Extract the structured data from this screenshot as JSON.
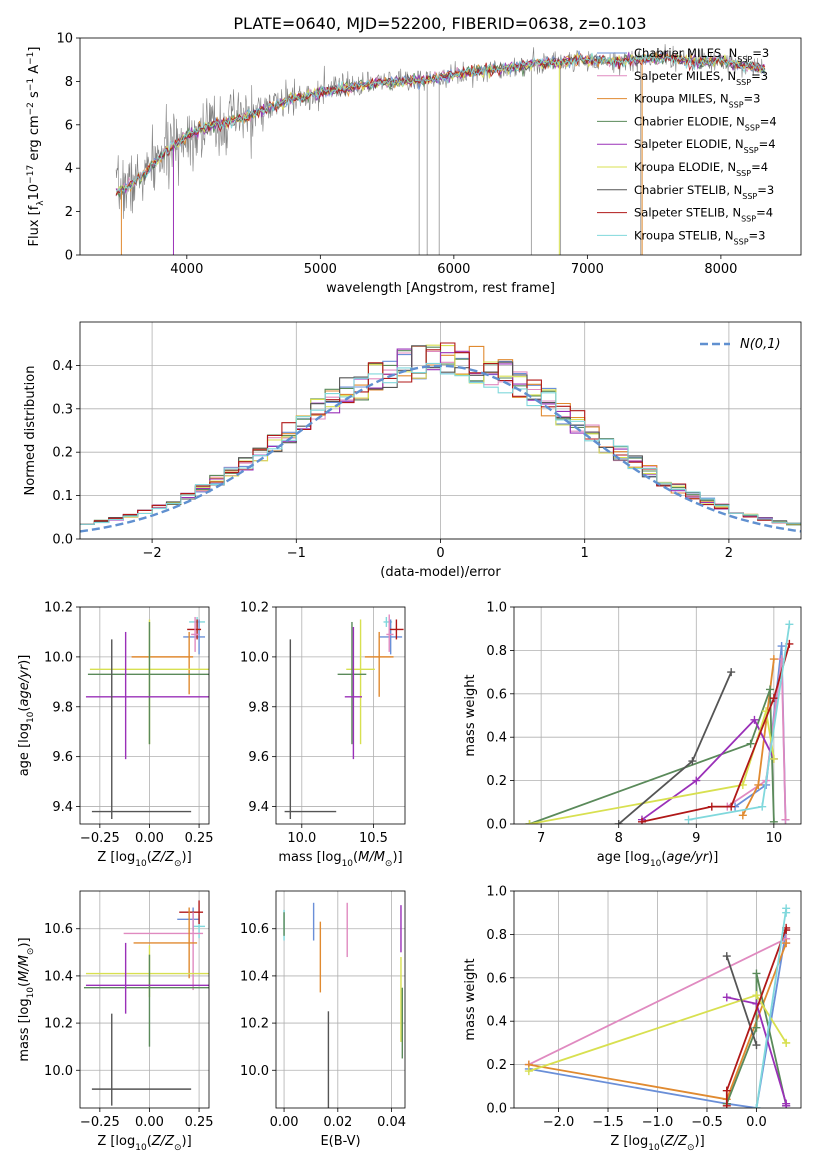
{
  "figure_title": "PLATE=0640, MJD=52200, FIBERID=0638, z=0.103",
  "colors": {
    "Chabrier MILES": "#6a8fd8",
    "Salpeter MILES": "#e08ac0",
    "Kroupa MILES": "#e08a30",
    "Chabrier ELODIE": "#5a8a5a",
    "Salpeter ELODIE": "#9a30b8",
    "Kroupa ELODIE": "#d8e050",
    "Chabrier STELIB": "#555555",
    "Salpeter STELIB": "#b01818",
    "Kroupa STELIB": "#80d8dc",
    "data": "#808080",
    "gauss": "#6090d0"
  },
  "chart_data": [
    {
      "type": "line",
      "panel": "spectrum",
      "xlabel": "wavelength [Angstrom, rest frame]",
      "ylabel": "Flux [f_λ10^-17 erg cm^-2 s^-1 A^-1]",
      "xlim": [
        3200,
        8600
      ],
      "ylim": [
        0,
        10
      ],
      "xticks": [
        4000,
        5000,
        6000,
        7000,
        8000
      ],
      "yticks": [
        0,
        2,
        4,
        6,
        8,
        10
      ],
      "legend": [
        "Chabrier MILES, N_SSP=3",
        "Salpeter MILES, N_SSP=3",
        "Kroupa MILES, N_SSP=3",
        "Chabrier ELODIE, N_SSP=4",
        "Salpeter ELODIE, N_SSP=4",
        "Kroupa ELODIE, N_SSP=4",
        "Chabrier STELIB, N_SSP=3",
        "Salpeter STELIB, N_SSP=4",
        "Kroupa STELIB, N_SSP=3"
      ],
      "legend_position": "right",
      "continuum": {
        "x": [
          3470,
          3600,
          3700,
          3800,
          3900,
          4000,
          4100,
          4200,
          4300,
          4400,
          4500,
          4600,
          4800,
          5000,
          5200,
          5400,
          5600,
          5800,
          6000,
          6200,
          6400,
          6600,
          6800,
          7000,
          7200,
          7400,
          7600,
          7800,
          8000,
          8200,
          8300
        ],
        "y": [
          2.9,
          3.3,
          3.8,
          4.5,
          5.0,
          5.5,
          5.8,
          6.0,
          6.1,
          6.3,
          6.5,
          6.8,
          7.2,
          7.5,
          7.7,
          7.9,
          8.0,
          8.1,
          8.3,
          8.5,
          8.6,
          8.8,
          8.9,
          9.0,
          8.9,
          9.0,
          9.1,
          8.9,
          8.9,
          8.7,
          8.6
        ]
      },
      "model_drops": [
        {
          "model": "Kroupa MILES",
          "x": 3510
        },
        {
          "model": "Salpeter ELODIE",
          "x": 3900
        },
        {
          "model": "Kroupa ELODIE",
          "x": 6790
        },
        {
          "model": "Kroupa MILES",
          "x": 7410
        }
      ],
      "data_spikes": [
        5740,
        5800,
        5890,
        6580,
        6800,
        7400
      ]
    },
    {
      "type": "line",
      "panel": "residual-histogram",
      "xlabel": "(data-model)/error",
      "ylabel": "Normed distribution",
      "xlim": [
        -2.5,
        2.5
      ],
      "ylim": [
        0,
        0.5
      ],
      "xticks": [
        -2,
        -1,
        0,
        1,
        2
      ],
      "yticks": [
        0.0,
        0.1,
        0.2,
        0.3,
        0.4
      ],
      "gauss_label": "N(0,1)",
      "legend_position": "top-right",
      "bin_width": 0.1,
      "n_bins": 50,
      "hist_seeds": [
        11,
        23,
        37,
        41,
        53,
        67,
        79,
        83,
        97
      ]
    },
    {
      "type": "scatter",
      "panel": "age-vs-Z",
      "xlabel": "Z [log10(Z/Z_sun)]",
      "ylabel": "age [log10(age/yr)]",
      "xlim": [
        -0.35,
        0.3
      ],
      "ylim": [
        9.33,
        10.2
      ],
      "xticks": [
        -0.25,
        0.0,
        0.25
      ],
      "xtick_labels": [
        "−0.25",
        "0.00",
        "0.25"
      ],
      "yticks": [
        9.4,
        9.6,
        9.8,
        10.0,
        10.2
      ],
      "ytick_labels": [
        "9.4",
        "9.6",
        "9.8",
        "10.0",
        "10.2"
      ],
      "points": [
        {
          "model": "Kroupa STELIB",
          "x": 0.24,
          "y": 10.14,
          "xerr": [
            0.04,
            0.04
          ],
          "yerr": [
            0.02,
            0.02
          ]
        },
        {
          "model": "Chabrier MILES",
          "x": 0.25,
          "y": 10.08,
          "xerr": [
            0.08,
            0.03
          ],
          "yerr": [
            0.07,
            0.07
          ]
        },
        {
          "model": "Salpeter STELIB",
          "x": 0.24,
          "y": 10.11,
          "xerr": [
            0.05,
            0.02
          ],
          "yerr": [
            0.04,
            0.04
          ]
        },
        {
          "model": "Salpeter MILES",
          "x": 0.23,
          "y": 10.09,
          "xerr": [
            0.02,
            0.02
          ],
          "yerr": [
            0.07,
            0.07
          ]
        },
        {
          "model": "Kroupa MILES",
          "x": 0.2,
          "y": 10.0,
          "xerr": [
            0.29,
            0.02
          ],
          "yerr": [
            0.15,
            0.1
          ]
        },
        {
          "model": "Kroupa ELODIE",
          "x": 0.0,
          "y": 9.95,
          "xerr": [
            0.3,
            0.3
          ],
          "yerr": [
            0.3,
            0.2
          ]
        },
        {
          "model": "Chabrier ELODIE",
          "x": 0.0,
          "y": 9.93,
          "xerr": [
            0.31,
            0.33
          ],
          "yerr": [
            0.28,
            0.21
          ]
        },
        {
          "model": "Salpeter ELODIE",
          "x": -0.12,
          "y": 9.84,
          "xerr": [
            0.2,
            0.43
          ],
          "yerr": [
            0.25,
            0.26
          ]
        },
        {
          "model": "Chabrier STELIB",
          "x": -0.19,
          "y": 9.38,
          "xerr": [
            0.1,
            0.4
          ],
          "yerr": [
            0.03,
            0.69
          ]
        }
      ]
    },
    {
      "type": "scatter",
      "panel": "age-vs-mass",
      "xlabel": "mass [log10(M/M_sun)]",
      "ylabel": "",
      "xlim": [
        9.82,
        10.72
      ],
      "ylim": [
        9.33,
        10.2
      ],
      "xticks": [
        10.0,
        10.5
      ],
      "xtick_labels": [
        "10.0",
        "10.5"
      ],
      "yticks": [
        9.4,
        9.6,
        9.8,
        10.0,
        10.2
      ],
      "ytick_labels": [
        "9.4",
        "9.6",
        "9.8",
        "10.0",
        "10.2"
      ],
      "points": [
        {
          "model": "Kroupa STELIB",
          "x": 10.59,
          "y": 10.14,
          "xerr": [
            0.02,
            0.04
          ],
          "yerr": [
            0.02,
            0.02
          ]
        },
        {
          "model": "Chabrier MILES",
          "x": 10.62,
          "y": 10.08,
          "xerr": [
            0.08,
            0.08
          ],
          "yerr": [
            0.07,
            0.07
          ]
        },
        {
          "model": "Salpeter STELIB",
          "x": 10.66,
          "y": 10.11,
          "xerr": [
            0.05,
            0.05
          ],
          "yerr": [
            0.04,
            0.04
          ]
        },
        {
          "model": "Salpeter MILES",
          "x": 10.61,
          "y": 10.09,
          "xerr": [
            0.02,
            0.03
          ],
          "yerr": [
            0.07,
            0.08
          ]
        },
        {
          "model": "Kroupa MILES",
          "x": 10.54,
          "y": 10.0,
          "xerr": [
            0.1,
            0.1
          ],
          "yerr": [
            0.16,
            0.1
          ]
        },
        {
          "model": "Kroupa ELODIE",
          "x": 10.41,
          "y": 9.95,
          "xerr": [
            0.1,
            0.1
          ],
          "yerr": [
            0.3,
            0.2
          ]
        },
        {
          "model": "Chabrier ELODIE",
          "x": 10.35,
          "y": 9.93,
          "xerr": [
            0.1,
            0.1
          ],
          "yerr": [
            0.28,
            0.21
          ]
        },
        {
          "model": "Salpeter ELODIE",
          "x": 10.36,
          "y": 9.84,
          "xerr": [
            0.06,
            0.06
          ],
          "yerr": [
            0.25,
            0.28
          ]
        },
        {
          "model": "Chabrier STELIB",
          "x": 9.92,
          "y": 9.38,
          "xerr": [
            0.04,
            0.32
          ],
          "yerr": [
            0.03,
            0.69
          ]
        }
      ]
    },
    {
      "type": "line",
      "panel": "mass-weight-vs-age",
      "xlabel": "age [log10(age/yr)]",
      "ylabel": "mass weight",
      "xlim": [
        6.65,
        10.35
      ],
      "ylim": [
        0,
        1.0
      ],
      "xticks": [
        7,
        8,
        9,
        10
      ],
      "xtick_labels": [
        "7",
        "8",
        "9",
        "10"
      ],
      "yticks": [
        0.0,
        0.2,
        0.4,
        0.6,
        0.8,
        1.0
      ],
      "ytick_labels": [
        "0.0",
        "0.2",
        "0.4",
        "0.6",
        "0.8",
        "1.0"
      ],
      "series": [
        {
          "model": "Chabrier MILES",
          "x": [
            9.5,
            9.9,
            10.1,
            10.15
          ],
          "y": [
            0.08,
            0.18,
            0.82,
            0.02
          ]
        },
        {
          "model": "Salpeter MILES",
          "x": [
            9.4,
            9.9,
            10.1,
            10.15
          ],
          "y": [
            0.08,
            0.2,
            0.76,
            0.02
          ]
        },
        {
          "model": "Kroupa MILES",
          "x": [
            9.6,
            9.8,
            10.0
          ],
          "y": [
            0.04,
            0.18,
            0.76
          ]
        },
        {
          "model": "Chabrier ELODIE",
          "x": [
            6.85,
            9.7,
            9.95,
            10.0
          ],
          "y": [
            0.0,
            0.37,
            0.62,
            0.01
          ]
        },
        {
          "model": "Salpeter ELODIE",
          "x": [
            8.3,
            9.0,
            9.75,
            10.0
          ],
          "y": [
            0.02,
            0.2,
            0.48,
            0.3
          ]
        },
        {
          "model": "Kroupa ELODIE",
          "x": [
            6.85,
            9.6,
            9.9,
            10.0
          ],
          "y": [
            0.0,
            0.18,
            0.52,
            0.3
          ]
        },
        {
          "model": "Chabrier STELIB",
          "x": [
            8.0,
            8.95,
            9.45
          ],
          "y": [
            0.0,
            0.29,
            0.7
          ]
        },
        {
          "model": "Salpeter STELIB",
          "x": [
            8.3,
            9.2,
            9.45,
            10.0,
            10.2
          ],
          "y": [
            0.01,
            0.08,
            0.08,
            0.58,
            0.83
          ]
        },
        {
          "model": "Kroupa STELIB",
          "x": [
            8.9,
            9.85,
            10.2
          ],
          "y": [
            0.02,
            0.08,
            0.92
          ]
        }
      ]
    },
    {
      "type": "scatter",
      "panel": "mass-vs-Z",
      "xlabel": "Z [log10(Z/Z_sun)]",
      "ylabel": "mass [log10(M/M_sun)]",
      "xlim": [
        -0.35,
        0.3
      ],
      "ylim": [
        9.84,
        10.76
      ],
      "xticks": [
        -0.25,
        0.0,
        0.25
      ],
      "xtick_labels": [
        "−0.25",
        "0.00",
        "0.25"
      ],
      "yticks": [
        10.0,
        10.2,
        10.4,
        10.6
      ],
      "ytick_labels": [
        "10.0",
        "10.2",
        "10.4",
        "10.6"
      ],
      "points": [
        {
          "model": "Kroupa STELIB",
          "x": 0.25,
          "y": 10.61,
          "xerr": [
            0.03,
            0.03
          ],
          "yerr": [
            0.05,
            0.05
          ]
        },
        {
          "model": "Chabrier MILES",
          "x": 0.22,
          "y": 10.64,
          "xerr": [
            0.08,
            0.03
          ],
          "yerr": [
            0.05,
            0.05
          ]
        },
        {
          "model": "Salpeter STELIB",
          "x": 0.25,
          "y": 10.67,
          "xerr": [
            0.1,
            0.02
          ],
          "yerr": [
            0.05,
            0.05
          ]
        },
        {
          "model": "Salpeter MILES",
          "x": 0.22,
          "y": 10.58,
          "xerr": [
            0.35,
            0.05
          ],
          "yerr": [
            0.24,
            0.09
          ]
        },
        {
          "model": "Kroupa MILES",
          "x": 0.2,
          "y": 10.54,
          "xerr": [
            0.28,
            0.04
          ],
          "yerr": [
            0.15,
            0.15
          ]
        },
        {
          "model": "Kroupa ELODIE",
          "x": 0.0,
          "y": 10.41,
          "xerr": [
            0.32,
            0.32
          ],
          "yerr": [
            0.1,
            0.12
          ]
        },
        {
          "model": "Chabrier ELODIE",
          "x": 0.0,
          "y": 10.35,
          "xerr": [
            0.33,
            0.33
          ],
          "yerr": [
            0.25,
            0.14
          ]
        },
        {
          "model": "Salpeter ELODIE",
          "x": -0.12,
          "y": 10.36,
          "xerr": [
            0.2,
            0.43
          ],
          "yerr": [
            0.12,
            0.18
          ]
        },
        {
          "model": "Chabrier STELIB",
          "x": -0.19,
          "y": 9.92,
          "xerr": [
            0.1,
            0.4
          ],
          "yerr": [
            0.07,
            0.32
          ]
        }
      ]
    },
    {
      "type": "scatter",
      "panel": "mass-vs-EBV",
      "xlabel": "E(B-V)",
      "ylabel": "",
      "xlim": [
        -0.003,
        0.045
      ],
      "ylim": [
        9.84,
        10.76
      ],
      "xticks": [
        0.0,
        0.02,
        0.04
      ],
      "xtick_labels": [
        "0.00",
        "0.02",
        "0.04"
      ],
      "yticks": [
        10.0,
        10.2,
        10.4,
        10.6
      ],
      "ytick_labels": [
        "10.0",
        "10.2",
        "10.4",
        "10.6"
      ],
      "points": [
        {
          "model": "Kroupa STELIB",
          "x": 0.0,
          "y": 10.6,
          "xerr": [
            0,
            0
          ],
          "yerr": [
            0.05,
            0.08
          ]
        },
        {
          "model": "Chabrier ELODIE",
          "x": 0.0,
          "y": 10.62,
          "xerr": [
            0,
            0
          ],
          "yerr": [
            0.05,
            0.05
          ]
        },
        {
          "model": "Chabrier MILES",
          "x": 0.011,
          "y": 10.6,
          "xerr": [
            0,
            0
          ],
          "yerr": [
            0.05,
            0.11
          ]
        },
        {
          "model": "Kroupa MILES",
          "x": 0.0135,
          "y": 10.48,
          "xerr": [
            0,
            0
          ],
          "yerr": [
            0.15,
            0.15
          ]
        },
        {
          "model": "Salpeter MILES",
          "x": 0.0235,
          "y": 10.6,
          "xerr": [
            0,
            0
          ],
          "yerr": [
            0.12,
            0.11
          ]
        },
        {
          "model": "Chabrier STELIB",
          "x": 0.0165,
          "y": 10.0,
          "xerr": [
            0,
            0
          ],
          "yerr": [
            0.2,
            0.25
          ]
        },
        {
          "model": "Salpeter ELODIE",
          "x": 0.0435,
          "y": 10.6,
          "xerr": [
            0,
            0
          ],
          "yerr": [
            0.1,
            0.1
          ]
        },
        {
          "model": "Kroupa ELODIE",
          "x": 0.0435,
          "y": 10.3,
          "xerr": [
            0,
            0
          ],
          "yerr": [
            0.18,
            0.18
          ]
        },
        {
          "model": "Chabrier ELODIE",
          "x": 0.044,
          "y": 10.2,
          "xerr": [
            0,
            0
          ],
          "yerr": [
            0.15,
            0.15
          ]
        }
      ]
    },
    {
      "type": "line",
      "panel": "mass-weight-vs-Z",
      "xlabel": "Z [log10(Z/Z_sun)]",
      "ylabel": "mass weight",
      "xlim": [
        -2.45,
        0.45
      ],
      "ylim": [
        0,
        1.0
      ],
      "xticks": [
        -2.0,
        -1.5,
        -1.0,
        -0.5,
        0.0
      ],
      "xtick_labels": [
        "−2.0",
        "−1.5",
        "−1.0",
        "−0.5",
        "0.0"
      ],
      "yticks": [
        0.0,
        0.2,
        0.4,
        0.6,
        0.8,
        1.0
      ],
      "ytick_labels": [
        "0.0",
        "0.2",
        "0.4",
        "0.6",
        "0.8",
        "1.0"
      ],
      "series": [
        {
          "model": "Chabrier MILES",
          "x": [
            -2.3,
            -0.3,
            0.0,
            0.3
          ],
          "y": [
            0.18,
            0.02,
            0.0,
            0.82
          ]
        },
        {
          "model": "Salpeter MILES",
          "x": [
            -2.3,
            0.3,
            0.3
          ],
          "y": [
            0.2,
            0.78,
            0.76
          ]
        },
        {
          "model": "Kroupa MILES",
          "x": [
            -2.3,
            -0.3,
            0.3
          ],
          "y": [
            0.2,
            0.04,
            0.76
          ]
        },
        {
          "model": "Chabrier ELODIE",
          "x": [
            -0.3,
            0.0,
            0.0,
            0.3
          ],
          "y": [
            0.02,
            0.37,
            0.62,
            0.01
          ]
        },
        {
          "model": "Salpeter ELODIE",
          "x": [
            -0.3,
            0.0,
            0.3,
            0.3
          ],
          "y": [
            0.51,
            0.48,
            0.02,
            0.01
          ]
        },
        {
          "model": "Kroupa ELODIE",
          "x": [
            -2.3,
            0.0,
            0.3,
            0.3
          ],
          "y": [
            0.17,
            0.52,
            0.3,
            0.3
          ]
        },
        {
          "model": "Chabrier STELIB",
          "x": [
            -0.3,
            0.0
          ],
          "y": [
            0.7,
            0.29
          ]
        },
        {
          "model": "Salpeter STELIB",
          "x": [
            -0.3,
            -0.3,
            0.3,
            0.3
          ],
          "y": [
            0.01,
            0.08,
            0.83,
            0.82
          ]
        },
        {
          "model": "Kroupa STELIB",
          "x": [
            0.0,
            0.3,
            0.3
          ],
          "y": [
            0.0,
            0.92,
            0.9
          ]
        }
      ]
    }
  ]
}
